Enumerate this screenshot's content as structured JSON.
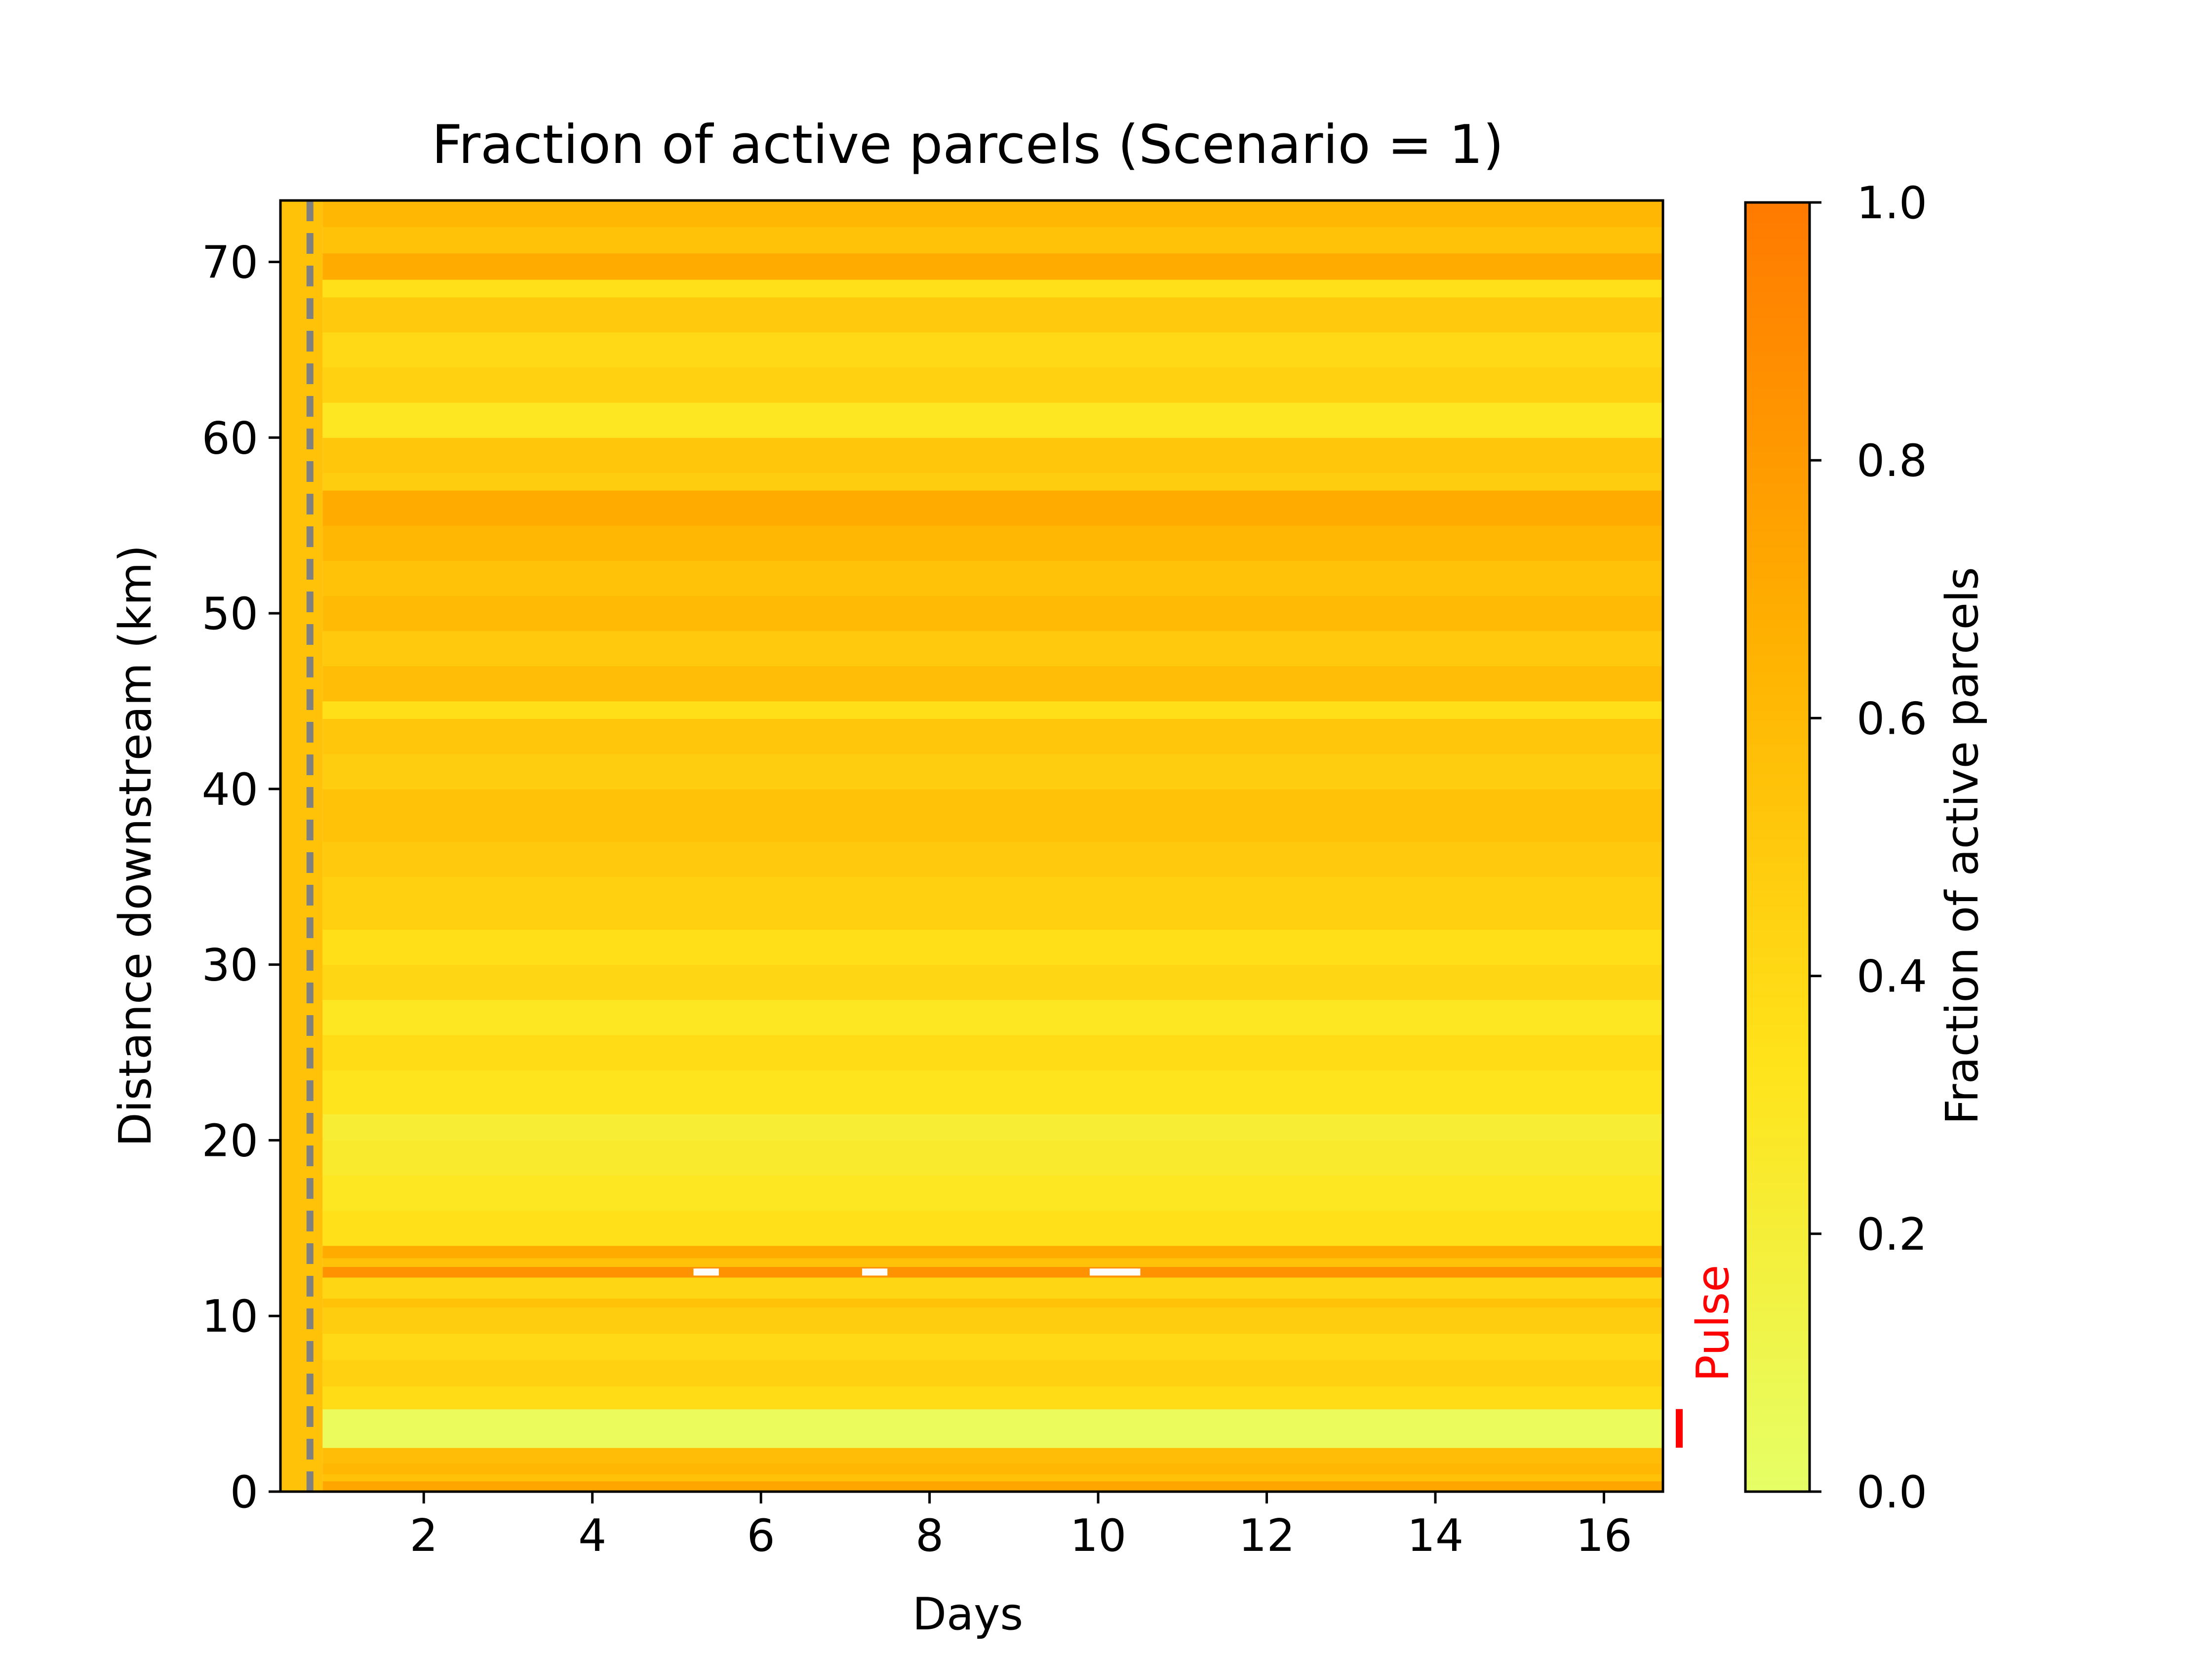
{
  "chart_data": {
    "type": "heatmap",
    "title": "Fraction of  active parcels (Scenario = 1)",
    "xlabel": "Days",
    "ylabel": "Distance downstream (km)",
    "xlim": [
      0.3,
      16.7
    ],
    "ylim": [
      0,
      73.5
    ],
    "xticks": [
      2,
      4,
      6,
      8,
      10,
      12,
      14,
      16
    ],
    "yticks": [
      0,
      10,
      20,
      30,
      40,
      50,
      60,
      70
    ],
    "colorbar": {
      "label": "Fraction of active parcels",
      "range": [
        0.0,
        1.0
      ],
      "ticks": [
        "0.0",
        "0.2",
        "0.4",
        "0.6",
        "0.8",
        "1.0"
      ],
      "colors": [
        "#e6ff66",
        "#ffe31a",
        "#ffb000",
        "#ff7a00"
      ]
    },
    "reference_line": {
      "x": 0.65,
      "style": "dashed",
      "color": "#808080"
    },
    "annotation": {
      "text": "Pulse",
      "color": "#ff0000",
      "y_range": [
        2.5,
        4.7
      ]
    },
    "bands": [
      {
        "y0": 0.0,
        "y1": 0.6,
        "value": 0.72
      },
      {
        "y0": 0.6,
        "y1": 1.0,
        "value": 0.55
      },
      {
        "y0": 1.0,
        "y1": 1.6,
        "value": 0.62
      },
      {
        "y0": 1.6,
        "y1": 2.5,
        "value": 0.58
      },
      {
        "y0": 2.5,
        "y1": 4.7,
        "value": 0.05
      },
      {
        "y0": 4.7,
        "y1": 6.0,
        "value": 0.38
      },
      {
        "y0": 6.0,
        "y1": 7.5,
        "value": 0.45
      },
      {
        "y0": 7.5,
        "y1": 9.0,
        "value": 0.4
      },
      {
        "y0": 9.0,
        "y1": 10.5,
        "value": 0.48
      },
      {
        "y0": 10.5,
        "y1": 11.0,
        "value": 0.55
      },
      {
        "y0": 11.0,
        "y1": 12.2,
        "value": 0.42
      },
      {
        "y0": 12.2,
        "y1": 12.8,
        "value": 0.85
      },
      {
        "y0": 12.8,
        "y1": 13.3,
        "value": 0.55
      },
      {
        "y0": 13.3,
        "y1": 14.0,
        "value": 0.7
      },
      {
        "y0": 14.0,
        "y1": 16.0,
        "value": 0.35
      },
      {
        "y0": 16.0,
        "y1": 18.0,
        "value": 0.3
      },
      {
        "y0": 18.0,
        "y1": 20.0,
        "value": 0.25
      },
      {
        "y0": 20.0,
        "y1": 21.5,
        "value": 0.22
      },
      {
        "y0": 21.5,
        "y1": 24.0,
        "value": 0.32
      },
      {
        "y0": 24.0,
        "y1": 26.0,
        "value": 0.38
      },
      {
        "y0": 26.0,
        "y1": 28.0,
        "value": 0.3
      },
      {
        "y0": 28.0,
        "y1": 30.0,
        "value": 0.42
      },
      {
        "y0": 30.0,
        "y1": 32.0,
        "value": 0.36
      },
      {
        "y0": 32.0,
        "y1": 35.0,
        "value": 0.46
      },
      {
        "y0": 35.0,
        "y1": 37.0,
        "value": 0.5
      },
      {
        "y0": 37.0,
        "y1": 40.0,
        "value": 0.55
      },
      {
        "y0": 40.0,
        "y1": 42.0,
        "value": 0.48
      },
      {
        "y0": 42.0,
        "y1": 44.0,
        "value": 0.52
      },
      {
        "y0": 44.0,
        "y1": 45.0,
        "value": 0.36
      },
      {
        "y0": 45.0,
        "y1": 47.0,
        "value": 0.58
      },
      {
        "y0": 47.0,
        "y1": 49.0,
        "value": 0.5
      },
      {
        "y0": 49.0,
        "y1": 51.0,
        "value": 0.6
      },
      {
        "y0": 51.0,
        "y1": 53.0,
        "value": 0.55
      },
      {
        "y0": 53.0,
        "y1": 55.0,
        "value": 0.62
      },
      {
        "y0": 55.0,
        "y1": 57.0,
        "value": 0.7
      },
      {
        "y0": 57.0,
        "y1": 58.0,
        "value": 0.48
      },
      {
        "y0": 58.0,
        "y1": 60.0,
        "value": 0.52
      },
      {
        "y0": 60.0,
        "y1": 62.0,
        "value": 0.3
      },
      {
        "y0": 62.0,
        "y1": 64.0,
        "value": 0.45
      },
      {
        "y0": 64.0,
        "y1": 66.0,
        "value": 0.4
      },
      {
        "y0": 66.0,
        "y1": 68.0,
        "value": 0.5
      },
      {
        "y0": 68.0,
        "y1": 69.0,
        "value": 0.35
      },
      {
        "y0": 69.0,
        "y1": 70.5,
        "value": 0.7
      },
      {
        "y0": 70.5,
        "y1": 72.0,
        "value": 0.55
      },
      {
        "y0": 72.0,
        "y1": 73.5,
        "value": 0.62
      }
    ],
    "gaps": [
      {
        "x0": 5.2,
        "x1": 5.5,
        "y0": 12.3,
        "y1": 12.7
      },
      {
        "x0": 7.2,
        "x1": 7.5,
        "y0": 12.3,
        "y1": 12.7
      },
      {
        "x0": 9.9,
        "x1": 10.5,
        "y0": 12.3,
        "y1": 12.7
      }
    ],
    "early_column": {
      "x0": 0.3,
      "x1": 0.8,
      "value": 0.55
    }
  }
}
